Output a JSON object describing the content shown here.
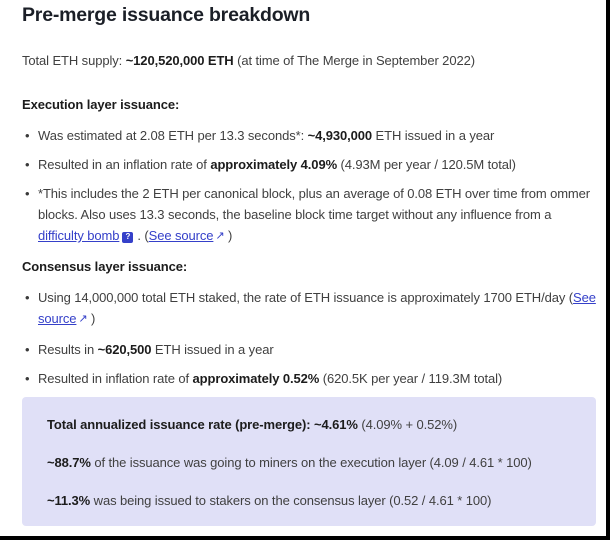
{
  "colors": {
    "link": "#3540c9",
    "note_box_bg": "#e0e0f7",
    "heading": "#1b1f27",
    "body": "#404040",
    "strong": "#1c1c1c",
    "edge": "#000000"
  },
  "header": {
    "title": "Pre-merge issuance breakdown"
  },
  "intro": {
    "prefix": "Total ETH supply: ",
    "supply": "~120,520,000 ETH",
    "suffix": " (at time of The Merge in September 2022)"
  },
  "execution": {
    "heading": "Execution layer issuance:",
    "bullet1": {
      "pre": "Was estimated at 2.08 ETH per 13.3 seconds*: ",
      "value": "~4,930,000",
      "post": " ETH issued in a year"
    },
    "bullet2": {
      "pre": "Resulted in an inflation rate of ",
      "value": "approximately 4.09%",
      "post": " (4.93M per year / 120.5M total)"
    },
    "bullet3": {
      "pre": "*This includes the 2 ETH per canonical block, plus an average of 0.08 ETH over time from ommer blocks. Also uses 13.3 seconds, the baseline block time target without any influence from a ",
      "difficulty_bomb_link": "difficulty bomb",
      "help_glyph": "?",
      "mid": ". (",
      "see_source_link": "See source",
      "external_glyph": "↗",
      "post": " )"
    }
  },
  "consensus": {
    "heading": "Consensus layer issuance:",
    "bullet1": {
      "pre": "Using 14,000,000 total ETH staked, the rate of ETH issuance is approximately 1700 ETH/day (",
      "see_source_link": "See source",
      "external_glyph": "↗",
      "post": " )"
    },
    "bullet2": {
      "pre": "Results in ",
      "value": "~620,500",
      "post": " ETH issued in a year"
    },
    "bullet3": {
      "pre": "Resulted in inflation rate of ",
      "value": "approximately 0.52%",
      "post": " (620.5K per year / 119.3M total)"
    }
  },
  "summary_box": {
    "line1": {
      "strong": "Total annualized issuance rate (pre-merge): ~4.61%",
      "rest": " (4.09% + 0.52%)"
    },
    "line2": {
      "strong": "~88.7%",
      "rest": " of the issuance was going to miners on the execution layer (4.09 / 4.61 * 100)"
    },
    "line3": {
      "strong": "~11.3%",
      "rest": " was being issued to stakers on the consensus layer (0.52 / 4.61 * 100)"
    }
  }
}
